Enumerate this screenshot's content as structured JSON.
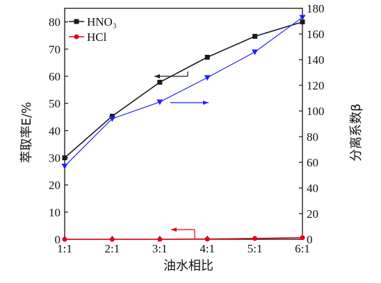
{
  "chart_data": {
    "type": "line",
    "categories": [
      "1:1",
      "2:1",
      "3:1",
      "4:1",
      "5:1",
      "6:1"
    ],
    "xlabel": "油水相比",
    "ylabel_left": "萃取率E/%",
    "ylabel_right": "分离系数β",
    "ylim_left": [
      0,
      85
    ],
    "yticks_left": [
      "0",
      "10",
      "20",
      "30",
      "40",
      "50",
      "60",
      "70",
      "80"
    ],
    "ylim_right": [
      0,
      180
    ],
    "yticks_right": [
      "0",
      "20",
      "40",
      "60",
      "80",
      "100",
      "120",
      "140",
      "160",
      "180"
    ],
    "legend": {
      "placement": "top-left"
    },
    "series": [
      {
        "name": "HNO₃",
        "axis": "left",
        "color": "#1a1a1a",
        "marker": "square",
        "values": [
          30,
          45.3,
          57.8,
          67,
          74.7,
          80
        ]
      },
      {
        "name": "HCl",
        "axis": "left",
        "color": "#e60012",
        "marker": "circle",
        "values": [
          0,
          0,
          0,
          0.1,
          0.3,
          0.6
        ]
      },
      {
        "name": "",
        "axis": "right",
        "color": "#1f1fff",
        "marker": "triangle-down",
        "values": [
          57,
          94,
          107,
          126,
          146,
          173
        ]
      }
    ],
    "annotations": [
      {
        "type": "arrow",
        "direction": "left",
        "color": "#1a1a1a",
        "points_to": "HNO₃"
      },
      {
        "type": "arrow",
        "direction": "right",
        "color": "#1f1fff",
        "points_to": "right-axis series"
      },
      {
        "type": "arrow",
        "direction": "left",
        "color": "#e60012",
        "points_to": "HCl"
      }
    ]
  }
}
